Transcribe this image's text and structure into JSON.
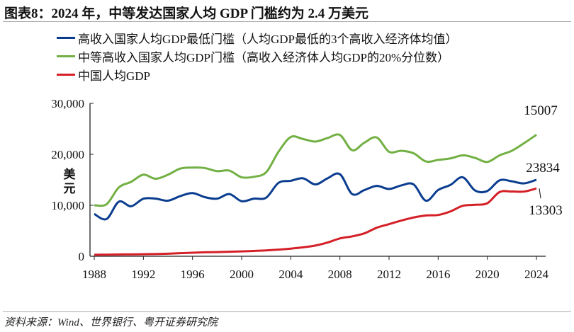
{
  "title": "图表8：2024 年，中等发达国家人均 GDP 门槛约为 2.4 万美元",
  "source": "资料来源：Wind、世界银行、粤开证券研究院",
  "chart_data": {
    "type": "line",
    "ylabel": "美元",
    "ylim": [
      0,
      30000
    ],
    "xlim": [
      1988,
      2024
    ],
    "yticks": [
      "0",
      "10,000",
      "20,000",
      "30,000"
    ],
    "ytick_values": [
      0,
      10000,
      20000,
      30000
    ],
    "xticks": [
      1988,
      1992,
      1996,
      2000,
      2004,
      2008,
      2012,
      2016,
      2020,
      2024
    ],
    "grid": false,
    "legend_position": "top-left",
    "x": [
      1988,
      1989,
      1990,
      1991,
      1992,
      1993,
      1994,
      1995,
      1996,
      1997,
      1998,
      1999,
      2000,
      2001,
      2002,
      2003,
      2004,
      2005,
      2006,
      2007,
      2008,
      2009,
      2010,
      2011,
      2012,
      2013,
      2014,
      2015,
      2016,
      2017,
      2018,
      2019,
      2020,
      2021,
      2022,
      2023,
      2024
    ],
    "series": [
      {
        "name": "高收入国家人均GDP最低门槛（人均GDP最低的3个高收入经济体均值）",
        "color": "#0a3d8f",
        "values": [
          8300,
          7300,
          10700,
          9800,
          11300,
          11300,
          10900,
          11800,
          12400,
          11600,
          11300,
          12200,
          10800,
          11300,
          11500,
          14400,
          14800,
          15300,
          14100,
          15300,
          16100,
          12200,
          13000,
          13800,
          13200,
          13900,
          14100,
          10900,
          13000,
          14000,
          15500,
          12900,
          12800,
          14900,
          14700,
          14300,
          15007
        ],
        "end_label": "15007"
      },
      {
        "name": "中等高收入国家人均GDP门槛（高收入经济体人均GDP的20%分位数）",
        "color": "#72b043",
        "values": [
          10000,
          10200,
          13500,
          14600,
          16000,
          15200,
          16000,
          17200,
          17400,
          17300,
          16700,
          16800,
          15500,
          15600,
          16500,
          20500,
          23400,
          23000,
          22500,
          23200,
          23800,
          20800,
          22300,
          23300,
          20500,
          20700,
          20200,
          18600,
          18900,
          19200,
          19800,
          19300,
          18500,
          19800,
          20700,
          22200,
          23834
        ],
        "end_label": "23834"
      },
      {
        "name": "中国人均GDP",
        "color": "#d42027",
        "values": [
          300,
          320,
          350,
          370,
          400,
          430,
          500,
          600,
          700,
          780,
          820,
          880,
          960,
          1050,
          1150,
          1300,
          1500,
          1750,
          2100,
          2700,
          3500,
          3900,
          4500,
          5600,
          6300,
          7000,
          7600,
          8000,
          8100,
          8800,
          9900,
          10100,
          10400,
          12600,
          12700,
          12700,
          13303
        ],
        "end_label": "13303"
      }
    ]
  }
}
